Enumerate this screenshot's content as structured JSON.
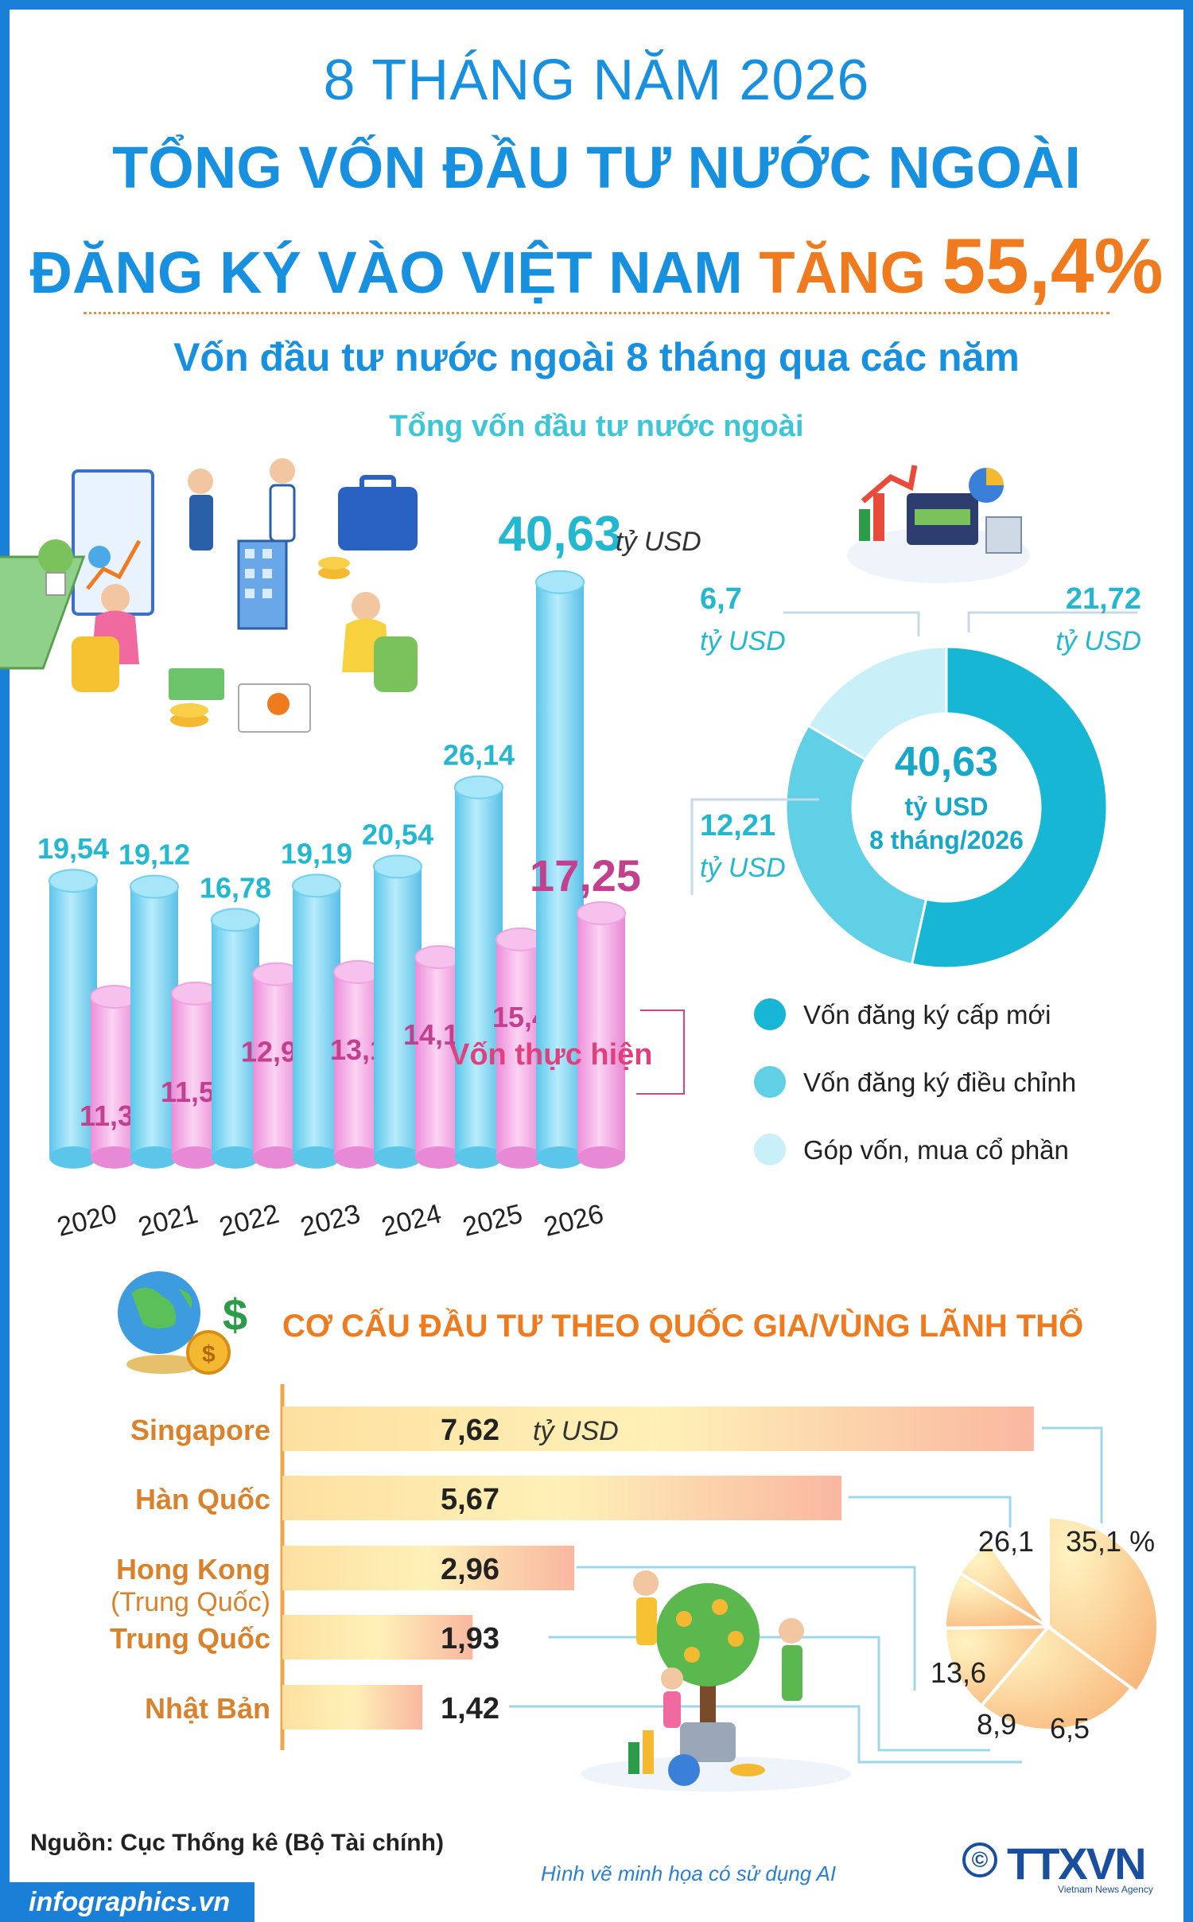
{
  "header": {
    "period": "8 THÁNG NĂM 2026",
    "title_line1": "TỔNG VỐN ĐẦU TƯ NƯỚC NGOÀI",
    "title_line2_prefix": "ĐĂNG KÝ VÀO VIỆT NAM",
    "title_line2_increase": "TĂNG",
    "title_line2_value": "55,4%",
    "subtitle": "Vốn đầu tư nước ngoài 8 tháng qua các năm",
    "total_label": "Tổng vốn đầu tư nước ngoài"
  },
  "colors": {
    "primary_blue": "#1890e0",
    "accent_orange": "#f07a1e",
    "teal": "#23b8d0",
    "pink": "#e0407e",
    "bar_blue": "#7fd8f2",
    "bar_pink": "#f3a9e6",
    "country_orange": "#d9822b"
  },
  "chart_data": [
    {
      "type": "bar",
      "title": "Vốn đầu tư nước ngoài 8 tháng qua các năm",
      "categories": [
        "2020",
        "2021",
        "2022",
        "2023",
        "2024",
        "2025",
        "2026"
      ],
      "series": [
        {
          "name": "Tổng vốn đầu tư nước ngoài",
          "values": [
            19.54,
            19.12,
            16.78,
            19.19,
            20.54,
            26.14,
            40.63
          ],
          "labels": [
            "19,54",
            "19,12",
            "16,78",
            "19,19",
            "20,54",
            "26,14",
            "40,63"
          ]
        },
        {
          "name": "Vốn thực hiện",
          "values": [
            11.35,
            11.58,
            12.94,
            13.1,
            14.15,
            15.4,
            17.25
          ],
          "labels": [
            "11,35",
            "11,58",
            "12,94",
            "13,1",
            "14,15",
            "15,4",
            "17,25"
          ]
        }
      ],
      "unit": "tỷ USD",
      "ylim": [
        0,
        42
      ]
    },
    {
      "type": "pie",
      "center_value": "40,63",
      "center_unit": "tỷ USD",
      "center_caption": "8 tháng/2026",
      "slices": [
        {
          "name": "Vốn đăng ký cấp mới",
          "value": 21.72,
          "label": "21,72",
          "unit": "tỷ USD",
          "color": "#17b6d4"
        },
        {
          "name": "Vốn đăng ký điều chỉnh",
          "value": 12.21,
          "label": "12,21",
          "unit": "tỷ USD",
          "color": "#5fd0e6"
        },
        {
          "name": "Góp vốn, mua cổ phần",
          "value": 6.7,
          "label": "6,7",
          "unit": "tỷ USD",
          "color": "#c9eff8"
        }
      ]
    },
    {
      "type": "bar",
      "title": "CƠ CẤU ĐẦU TƯ THEO QUỐC GIA/VÙNG LÃNH THỔ",
      "unit": "tỷ USD",
      "categories": [
        "Singapore",
        "Hàn Quốc",
        "Hong Kong",
        "Trung Quốc",
        "Nhật Bản"
      ],
      "category_notes": [
        "",
        "",
        "(Trung Quốc)",
        "",
        ""
      ],
      "values": [
        7.62,
        5.67,
        2.96,
        1.93,
        1.42
      ],
      "labels": [
        "7,62",
        "5,67",
        "2,96",
        "1,93",
        "1,42"
      ],
      "share_percent": [
        35.1,
        26.1,
        13.6,
        8.9,
        6.5
      ],
      "share_labels": [
        "35,1 %",
        "26,1",
        "13,6",
        "8,9",
        "6,5"
      ]
    }
  ],
  "bar_inline_label": "Vốn thực hiện",
  "footer": {
    "source": "Nguồn: Cục Thống kê (Bộ Tài chính)",
    "ai_note": "Hình vẽ minh họa có sử dụng AI",
    "site": "infographics.vn",
    "logo_text": "TTXVN",
    "logo_sub": "Vietnam News Agency",
    "copyright": "©"
  }
}
